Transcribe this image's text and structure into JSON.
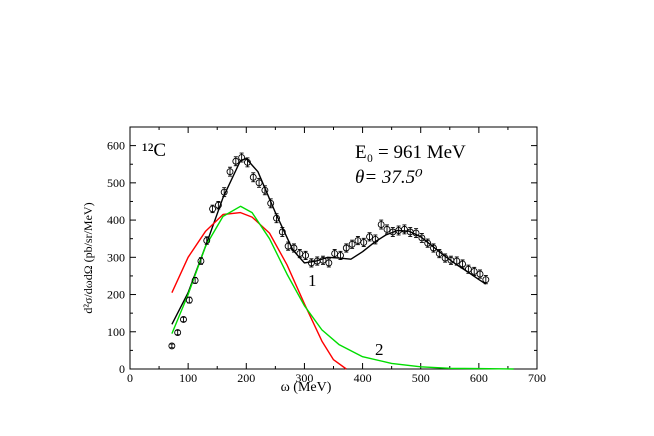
{
  "chart_data": {
    "type": "line",
    "xlabel": "ω (MeV)",
    "ylabel": "d²σ/dωdΩ (pb/sr/MeV)",
    "xlim": [
      0,
      700
    ],
    "ylim": [
      0,
      650
    ],
    "x_ticks": [
      0,
      100,
      200,
      300,
      400,
      500,
      600,
      700
    ],
    "y_ticks": [
      0,
      100,
      200,
      300,
      400,
      500,
      600
    ],
    "x_tick_labels": [
      "0",
      "100",
      "200",
      "300",
      "400",
      "500",
      "600",
      "700"
    ],
    "y_tick_labels": [
      "0",
      "100",
      "200",
      "300",
      "400",
      "500",
      "600"
    ],
    "grid": false,
    "annotations": {
      "nucleus": "¹²C",
      "energy": "E₀ = 961 MeV",
      "angle": "θ= 37.5⁰",
      "curve1_label": "1",
      "curve2_label": "2"
    },
    "series": [
      {
        "name": "",
        "kind": "data-points",
        "color": "#000000",
        "x": [
          72,
          82,
          92,
          102,
          112,
          122,
          132,
          142,
          152,
          162,
          172,
          182,
          192,
          202,
          212,
          222,
          232,
          242,
          252,
          262,
          272,
          282,
          292,
          302,
          312,
          322,
          332,
          342,
          352,
          362,
          372,
          382,
          392,
          402,
          412,
          422,
          432,
          442,
          452,
          462,
          472,
          482,
          492,
          502,
          512,
          522,
          532,
          542,
          552,
          562,
          572,
          582,
          592,
          602,
          612
        ],
        "y": [
          62,
          98,
          133,
          185,
          238,
          290,
          345,
          430,
          440,
          475,
          530,
          558,
          568,
          555,
          515,
          500,
          480,
          445,
          405,
          368,
          330,
          325,
          310,
          305,
          285,
          290,
          292,
          285,
          310,
          305,
          325,
          335,
          345,
          340,
          355,
          348,
          388,
          375,
          368,
          372,
          375,
          368,
          365,
          352,
          338,
          325,
          310,
          298,
          292,
          290,
          282,
          268,
          262,
          255,
          240
        ],
        "yerr": [
          5,
          6,
          6,
          8,
          8,
          9,
          10,
          10,
          10,
          12,
          12,
          12,
          12,
          12,
          12,
          12,
          12,
          12,
          12,
          12,
          11,
          11,
          11,
          11,
          11,
          11,
          11,
          11,
          11,
          11,
          11,
          11,
          11,
          11,
          11,
          12,
          12,
          12,
          12,
          12,
          12,
          12,
          12,
          12,
          11,
          11,
          11,
          11,
          11,
          11,
          11,
          11,
          11,
          11,
          11
        ]
      },
      {
        "name": "",
        "kind": "curve",
        "color": "#000000",
        "x": [
          72,
          100,
          130,
          160,
          190,
          200,
          220,
          250,
          280,
          300,
          320,
          340,
          360,
          380,
          400,
          420,
          440,
          460,
          480,
          500,
          520,
          540,
          560,
          580,
          600,
          612
        ],
        "y": [
          120,
          205,
          330,
          460,
          560,
          565,
          530,
          420,
          320,
          285,
          290,
          300,
          298,
          295,
          315,
          340,
          360,
          372,
          370,
          355,
          330,
          305,
          282,
          262,
          240,
          228
        ]
      },
      {
        "name": "",
        "kind": "curve",
        "color": "#ff0000",
        "x": [
          72,
          100,
          130,
          160,
          190,
          210,
          240,
          270,
          300,
          330,
          350,
          372
        ],
        "y": [
          205,
          300,
          370,
          415,
          420,
          408,
          365,
          280,
          175,
          75,
          25,
          0
        ]
      },
      {
        "name": "",
        "kind": "curve",
        "color": "#00dd00",
        "x": [
          72,
          100,
          130,
          160,
          190,
          210,
          240,
          270,
          300,
          330,
          360,
          400,
          450,
          500,
          550,
          600,
          660
        ],
        "y": [
          95,
          200,
          330,
          410,
          437,
          420,
          350,
          255,
          170,
          105,
          65,
          33,
          15,
          6,
          2,
          1,
          0
        ]
      }
    ]
  }
}
